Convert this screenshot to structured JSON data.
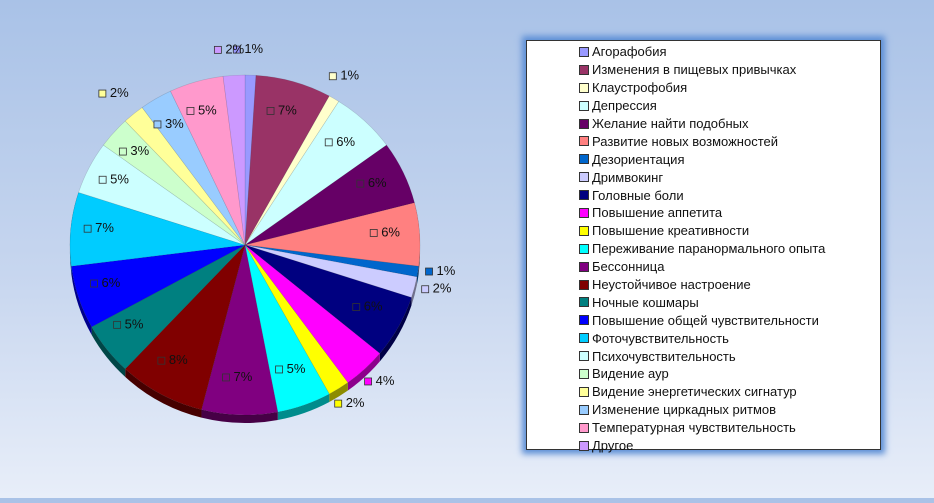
{
  "chart_data": {
    "type": "pie",
    "title": "",
    "slices": [
      {
        "label": "Агорафобия",
        "value": 1,
        "color": "#9999ff"
      },
      {
        "label": "Изменения в пищевых привычках",
        "value": 7,
        "color": "#993366"
      },
      {
        "label": "Клаустрофобия",
        "value": 1,
        "color": "#ffffcc"
      },
      {
        "label": "Депрессия",
        "value": 6,
        "color": "#ccffff"
      },
      {
        "label": "Желание найти подобных",
        "value": 6,
        "color": "#660066"
      },
      {
        "label": "Развитие новых возможностей",
        "value": 6,
        "color": "#ff8080"
      },
      {
        "label": "Дезориентация",
        "value": 1,
        "color": "#0066cc"
      },
      {
        "label": "Дримвокинг",
        "value": 2,
        "color": "#ccccff"
      },
      {
        "label": "Головные боли",
        "value": 6,
        "color": "#000080"
      },
      {
        "label": "Повышение аппетита",
        "value": 4,
        "color": "#ff00ff"
      },
      {
        "label": "Повышение креативности",
        "value": 2,
        "color": "#ffff00"
      },
      {
        "label": "Переживание паранормального опыта",
        "value": 5,
        "color": "#00ffff"
      },
      {
        "label": "Бессонница",
        "value": 7,
        "color": "#800080"
      },
      {
        "label": "Неустойчивое настроение",
        "value": 8,
        "color": "#800000"
      },
      {
        "label": "Ночные кошмары",
        "value": 5,
        "color": "#008080"
      },
      {
        "label": "Повышение общей чувствительности",
        "value": 6,
        "color": "#0000ff"
      },
      {
        "label": "Фоточувствительность",
        "value": 7,
        "color": "#00ccff"
      },
      {
        "label": "Психочувствительность",
        "value": 5,
        "color": "#ccffff"
      },
      {
        "label": "Видение аур",
        "value": 3,
        "color": "#ccffcc"
      },
      {
        "label": "Видение энергетических сигнатур",
        "value": 2,
        "color": "#ffff99"
      },
      {
        "label": "Изменение циркадных ритмов",
        "value": 3,
        "color": "#99ccff"
      },
      {
        "label": "Температурная чувствительность",
        "value": 5,
        "color": "#ff99cc"
      },
      {
        "label": "Другое",
        "value": 2,
        "color": "#cc99ff"
      }
    ],
    "value_suffix": "%",
    "legend_position": "right"
  }
}
